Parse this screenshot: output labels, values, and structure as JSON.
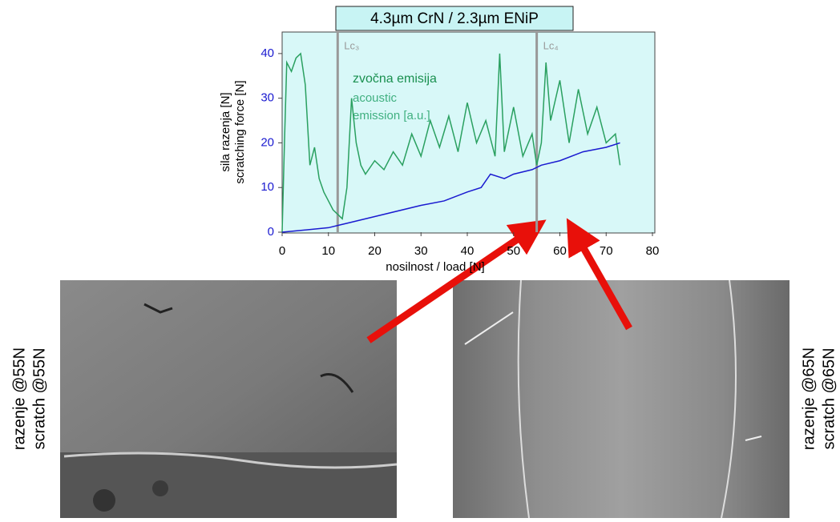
{
  "chart_data": {
    "type": "line",
    "title": "4.3µm CrN / 2.3µm ENiP",
    "ylabel": [
      "sila razenja [N]",
      "scratching force [N]"
    ],
    "xlabel": "nosilnost / load [N]",
    "xlim": [
      0,
      80
    ],
    "xticks": [
      0,
      10,
      20,
      30,
      40,
      50,
      60,
      70,
      80
    ],
    "ylim": [
      0,
      45
    ],
    "yticks": [
      0,
      10,
      20,
      30,
      40
    ],
    "annotations": [
      "zvočna emisija",
      "acoustic",
      "emission [a.u.]"
    ],
    "markers": [
      {
        "label": "Lc₃",
        "x": 12
      },
      {
        "label": "Lc₄",
        "x": 55
      }
    ],
    "series": [
      {
        "color": "#1a1ad0",
        "x": [
          0,
          10,
          12,
          14,
          20,
          30,
          35,
          40,
          43,
          45,
          48,
          50,
          54,
          56,
          60,
          65,
          70,
          73
        ],
        "values": [
          0,
          1,
          1.5,
          2,
          3.5,
          6,
          7,
          9,
          10,
          13,
          12,
          13,
          14,
          15,
          16,
          18,
          19,
          20
        ]
      },
      {
        "color": "#2aa060",
        "x": [
          0,
          0.5,
          1,
          2,
          3,
          4,
          5,
          6,
          7,
          8,
          9,
          10,
          11,
          12,
          13,
          14,
          15,
          16,
          17,
          18,
          20,
          22,
          24,
          26,
          28,
          30,
          32,
          34,
          36,
          38,
          40,
          42,
          44,
          46,
          47,
          48,
          50,
          52,
          54,
          55,
          56,
          57,
          58,
          60,
          62,
          64,
          66,
          68,
          70,
          72,
          73
        ],
        "values": [
          0,
          20,
          38,
          36,
          39,
          40,
          33,
          15,
          19,
          12,
          9,
          7,
          5,
          4,
          3,
          10,
          30,
          20,
          15,
          13,
          16,
          14,
          18,
          15,
          22,
          17,
          25,
          19,
          26,
          18,
          29,
          20,
          25,
          17,
          40,
          18,
          28,
          17,
          22,
          15,
          20,
          38,
          25,
          34,
          20,
          32,
          22,
          28,
          20,
          22,
          15
        ]
      }
    ]
  },
  "images": {
    "left_label": [
      "razenje @55N",
      "scratch @55N"
    ],
    "right_label": [
      "razenje @65N",
      "scratch @65N"
    ]
  }
}
